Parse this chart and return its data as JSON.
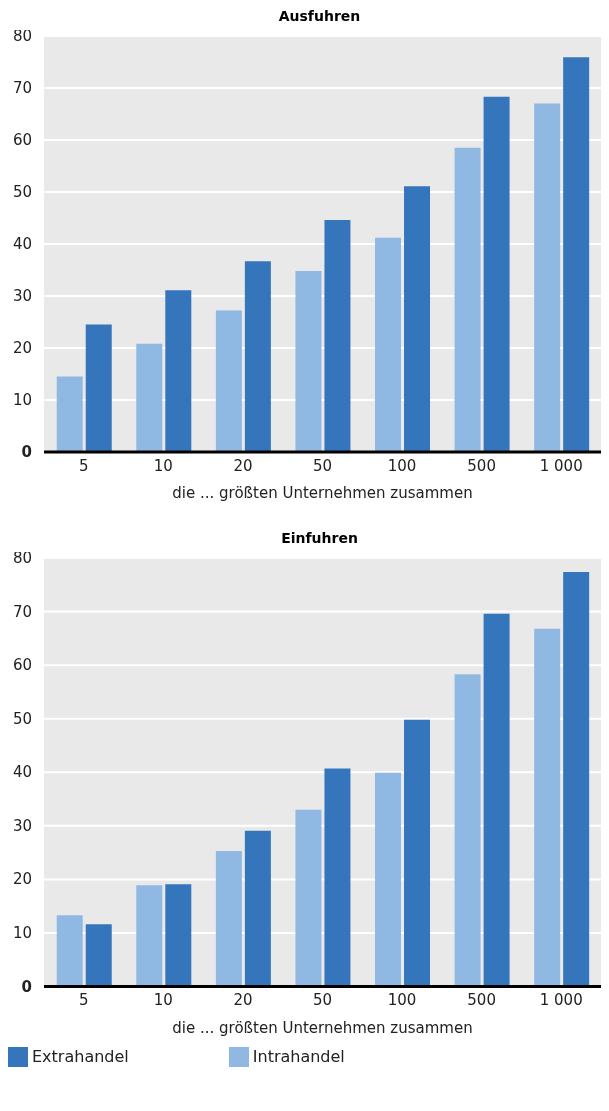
{
  "chart_data": [
    {
      "type": "bar",
      "title": "Ausfuhren",
      "xlabel": "die ... größten Unternehmen zusammen",
      "categories": [
        "5",
        "10",
        "20",
        "50",
        "100",
        "500",
        "1 000"
      ],
      "series": [
        {
          "color": "#8fb8e2",
          "values": [
            14.5,
            20.8,
            27.2,
            34.8,
            41.2,
            58.5,
            67.0
          ]
        },
        {
          "color": "#3575bc",
          "values": [
            24.5,
            31.1,
            36.7,
            44.6,
            51.1,
            68.3,
            75.9
          ]
        }
      ],
      "ylim": [
        0,
        80
      ],
      "yticks": [
        0,
        10,
        20,
        30,
        40,
        50,
        60,
        70,
        80
      ],
      "grid": "y",
      "legend": false
    },
    {
      "type": "bar",
      "title": "Einfuhren",
      "xlabel": "die ... größten Unternehmen zusammen",
      "categories": [
        "5",
        "10",
        "20",
        "50",
        "100",
        "500",
        "1 000"
      ],
      "series": [
        {
          "name": "Intrahandel",
          "color": "#8fb8e2",
          "values": [
            13.3,
            18.9,
            25.3,
            33.0,
            39.9,
            58.3,
            66.8
          ]
        },
        {
          "name": "Extrahandel",
          "color": "#3575bc",
          "values": [
            11.6,
            19.1,
            29.1,
            40.7,
            49.8,
            69.6,
            77.4
          ]
        }
      ],
      "ylim": [
        0,
        80
      ],
      "yticks": [
        0,
        10,
        20,
        30,
        40,
        50,
        60,
        70,
        80
      ],
      "grid": "y",
      "legend": "bottom"
    }
  ]
}
